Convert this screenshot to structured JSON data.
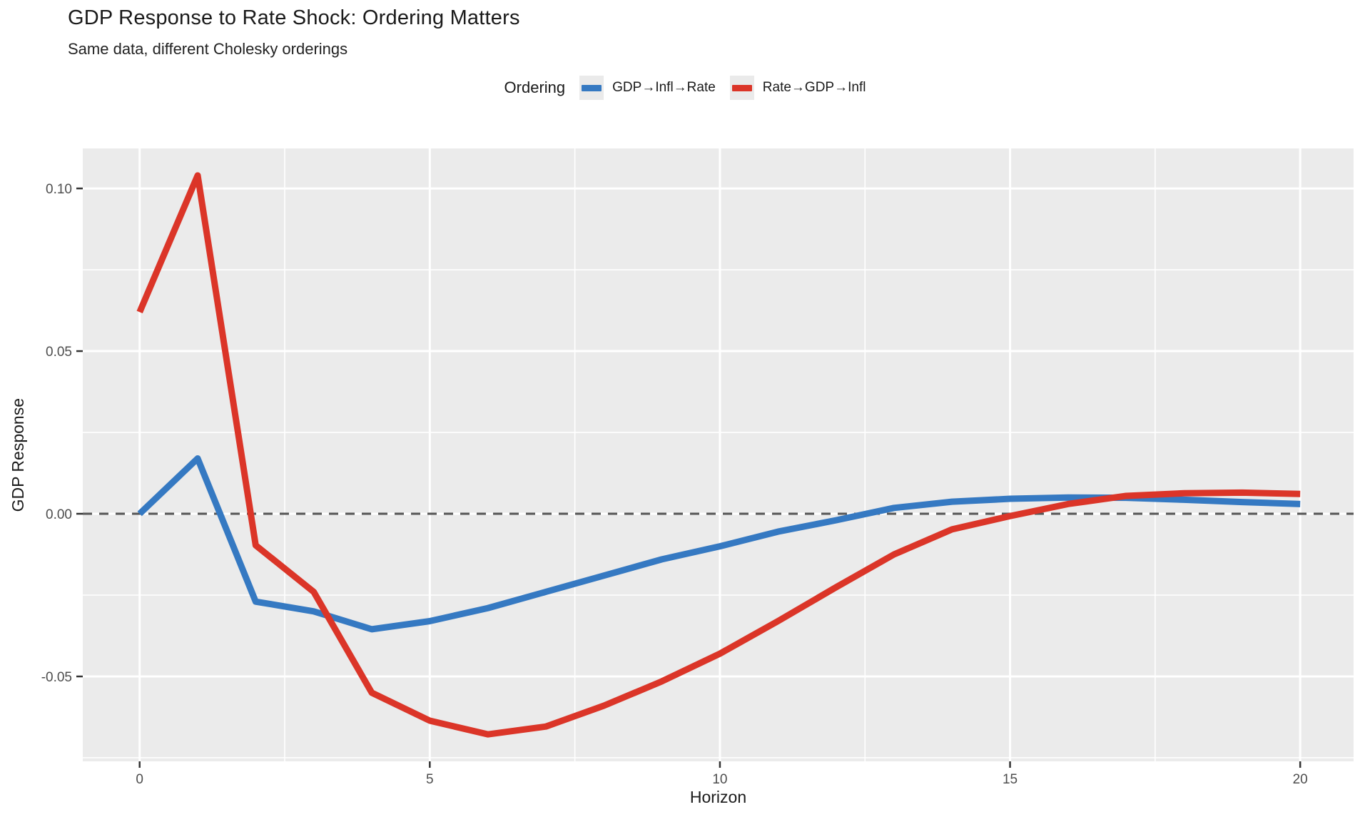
{
  "chart_data": {
    "type": "line",
    "title": "GDP Response to Rate Shock: Ordering Matters",
    "subtitle": "Same data, different Cholesky orderings",
    "xlabel": "Horizon",
    "ylabel": "GDP Response",
    "legend_title": "Ordering",
    "legend_position": "top",
    "grid": true,
    "panel_bg": "#EBEBEB",
    "grid_color": "#FFFFFF",
    "tick_color": "#333333",
    "tick_label_color": "#4D4D4D",
    "zero_line": {
      "y": 0,
      "style": "dashed",
      "color": "#565656"
    },
    "x": [
      0,
      1,
      2,
      3,
      4,
      5,
      6,
      7,
      8,
      9,
      10,
      11,
      12,
      13,
      14,
      15,
      16,
      17,
      18,
      19,
      20
    ],
    "series": [
      {
        "name": "GDP→Infl→Rate",
        "color": "#3579C2",
        "values": [
          0.0,
          0.017,
          -0.027,
          -0.03,
          -0.0355,
          -0.033,
          -0.029,
          -0.024,
          -0.019,
          -0.014,
          -0.01,
          -0.0055,
          -0.002,
          0.0018,
          0.0037,
          0.0046,
          0.005,
          0.0049,
          0.0043,
          0.0036,
          0.003
        ]
      },
      {
        "name": "Rate→GDP→Infl",
        "color": "#DB3528",
        "values": [
          0.062,
          0.104,
          -0.0097,
          -0.024,
          -0.055,
          -0.0636,
          -0.0678,
          -0.0654,
          -0.059,
          -0.0515,
          -0.043,
          -0.033,
          -0.0226,
          -0.0125,
          -0.0048,
          -0.0007,
          0.003,
          0.0055,
          0.0063,
          0.0065,
          0.0061
        ]
      }
    ],
    "x_ticks": [
      0,
      5,
      10,
      15,
      20
    ],
    "x_tick_labels": [
      "0",
      "5",
      "10",
      "15",
      "20"
    ],
    "x_minor_ticks": [
      2.5,
      7.5,
      12.5,
      17.5
    ],
    "y_ticks": [
      0.1,
      0.05,
      0.0,
      -0.05
    ],
    "y_tick_labels": [
      "0.10",
      "0.05",
      "0.00",
      "-0.05"
    ],
    "y_minor_ticks": [
      0.075,
      0.025,
      -0.025,
      -0.075
    ],
    "xlim": [
      -0.98,
      20.92
    ],
    "ylim": [
      -0.0761,
      0.1123
    ]
  }
}
